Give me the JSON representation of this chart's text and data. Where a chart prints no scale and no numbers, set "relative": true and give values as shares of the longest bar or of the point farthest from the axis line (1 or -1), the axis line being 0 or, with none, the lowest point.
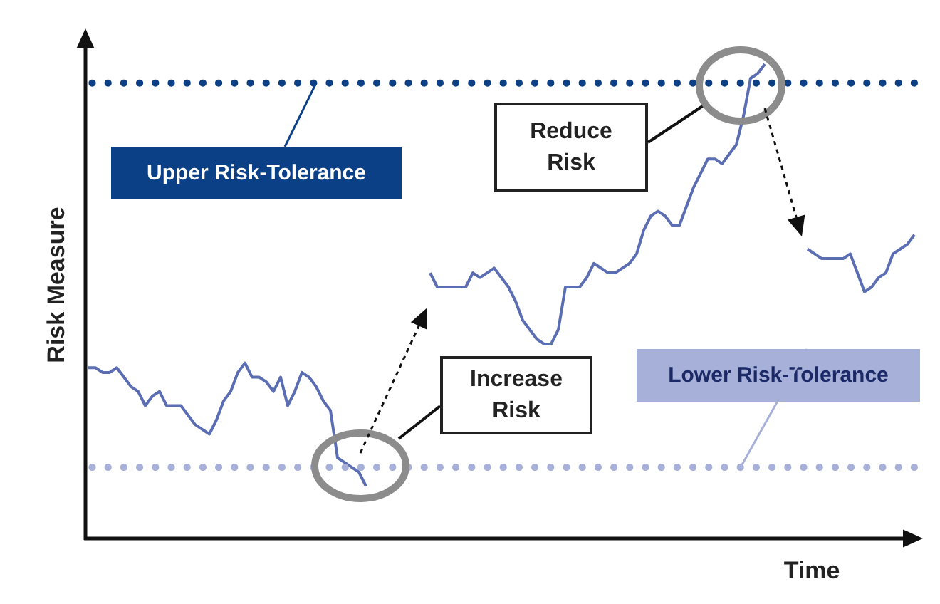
{
  "chart_data": {
    "type": "line",
    "relative": true,
    "xlabel": "Time",
    "ylabel": "Risk Measure",
    "categories": [
      null,
      null,
      null,
      null,
      null,
      null,
      null,
      null,
      null,
      null,
      null,
      null,
      null,
      null,
      null,
      null,
      null,
      null,
      null,
      null,
      null,
      null,
      null,
      null,
      null,
      null,
      null,
      null,
      null,
      null,
      null,
      null,
      null,
      null,
      null,
      null,
      null,
      null,
      null,
      null,
      null,
      null,
      null,
      null,
      null,
      null,
      null,
      null,
      null,
      null,
      null,
      null,
      null,
      null,
      null,
      null,
      null,
      null,
      null,
      null,
      null,
      null,
      null,
      null,
      null,
      null,
      null,
      null,
      null,
      null,
      null,
      null,
      null,
      null,
      null,
      null,
      null,
      null,
      null,
      null,
      null,
      null,
      null,
      null,
      null,
      null,
      null,
      null,
      null,
      null,
      null,
      null,
      null,
      null,
      null,
      null,
      null,
      null,
      null,
      null,
      null,
      null,
      null,
      null,
      null,
      null,
      null,
      null,
      null,
      null,
      null,
      null,
      null,
      null,
      null,
      null,
      null
    ],
    "series": [
      {
        "color": "#5b6eb3",
        "values": [
          0.36,
          0.36,
          0.35,
          0.35,
          0.36,
          0.34,
          0.32,
          0.31,
          0.28,
          0.3,
          0.31,
          0.28,
          0.28,
          0.28,
          0.26,
          0.24,
          0.23,
          0.22,
          0.25,
          0.29,
          0.31,
          0.35,
          0.37,
          0.34,
          0.34,
          0.33,
          0.31,
          0.34,
          0.28,
          0.31,
          0.35,
          0.34,
          0.32,
          0.29,
          0.27,
          0.17,
          0.16,
          0.15,
          0.14,
          0.11,
          null,
          null,
          null,
          null,
          null,
          null,
          null,
          null,
          null,
          null,
          null,
          null,
          null,
          null,
          null,
          null,
          null,
          null,
          null,
          null,
          null,
          null,
          null,
          null,
          null,
          null,
          null,
          null,
          null,
          null,
          null,
          null,
          null,
          null,
          null,
          null,
          null,
          null,
          null,
          null,
          null,
          null,
          null,
          null,
          null,
          null,
          null,
          null,
          null,
          null,
          null,
          null,
          null,
          null,
          null,
          null,
          null,
          null,
          null,
          null,
          null,
          null,
          null,
          null,
          null,
          null,
          null,
          null,
          null,
          null,
          null,
          null,
          null,
          null,
          null,
          null,
          null
        ]
      },
      {
        "color": "#5b6eb3",
        "values": [
          null,
          null,
          null,
          null,
          null,
          null,
          null,
          null,
          null,
          null,
          null,
          null,
          null,
          null,
          null,
          null,
          null,
          null,
          null,
          null,
          null,
          null,
          null,
          null,
          null,
          null,
          null,
          null,
          null,
          null,
          null,
          null,
          null,
          null,
          null,
          null,
          null,
          null,
          null,
          null,
          null,
          null,
          null,
          null,
          null,
          null,
          null,
          null,
          0.56,
          0.53,
          0.53,
          0.53,
          0.53,
          0.53,
          0.56,
          0.55,
          0.56,
          0.57,
          0.55,
          0.53,
          0.5,
          0.46,
          0.44,
          0.42,
          0.41,
          0.41,
          0.44,
          0.53,
          0.53,
          0.53,
          0.55,
          0.58,
          0.57,
          0.56,
          0.56,
          0.57,
          0.58,
          0.6,
          0.65,
          0.68,
          0.69,
          0.68,
          0.66,
          0.66,
          0.7,
          0.74,
          0.77,
          0.8,
          0.8,
          0.79,
          0.81,
          0.83,
          0.89,
          0.97,
          0.98,
          1,
          null,
          null,
          null,
          null,
          null,
          null,
          null,
          null,
          null,
          null,
          null,
          null,
          null,
          null,
          null,
          null,
          null,
          null,
          null,
          null,
          null
        ]
      },
      {
        "color": "#5b6eb3",
        "values": [
          null,
          null,
          null,
          null,
          null,
          null,
          null,
          null,
          null,
          null,
          null,
          null,
          null,
          null,
          null,
          null,
          null,
          null,
          null,
          null,
          null,
          null,
          null,
          null,
          null,
          null,
          null,
          null,
          null,
          null,
          null,
          null,
          null,
          null,
          null,
          null,
          null,
          null,
          null,
          null,
          null,
          null,
          null,
          null,
          null,
          null,
          null,
          null,
          null,
          null,
          null,
          null,
          null,
          null,
          null,
          null,
          null,
          null,
          null,
          null,
          null,
          null,
          null,
          null,
          null,
          null,
          null,
          null,
          null,
          null,
          null,
          null,
          null,
          null,
          null,
          null,
          null,
          null,
          null,
          null,
          null,
          null,
          null,
          null,
          null,
          null,
          null,
          null,
          null,
          null,
          null,
          null,
          null,
          null,
          null,
          null,
          null,
          null,
          null,
          null,
          null,
          0.61,
          0.6,
          0.59,
          0.59,
          0.59,
          0.59,
          0.6,
          0.56,
          0.52,
          0.53,
          0.55,
          0.56,
          0.6,
          0.61,
          0.62,
          0.64
        ]
      }
    ],
    "ref_lines": [
      {
        "axis": "y",
        "value": 0.96,
        "label": "Upper Risk-Tolerance",
        "color": "#0b3f86",
        "line_style": "dotted"
      },
      {
        "axis": "y",
        "value": 0.15,
        "label": "Lower Risk-Tolerance",
        "color": "#a6b0d8",
        "line_style": "dotted"
      }
    ],
    "annotations": [
      "Increase Risk",
      "Reduce Risk"
    ]
  }
}
